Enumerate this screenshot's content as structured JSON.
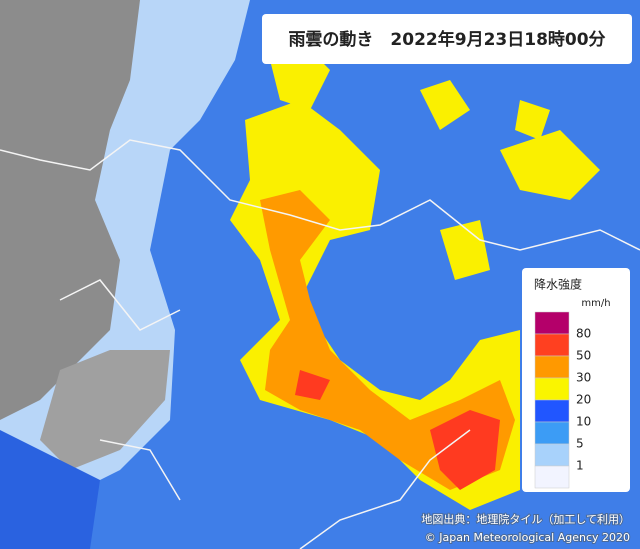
{
  "header": {
    "title": "雨雲の動き　2022年9月23日18時00分"
  },
  "legend": {
    "title": "降水強度",
    "unit": "mm/h",
    "colors": [
      "#b4006a",
      "#ff4020",
      "#ff9900",
      "#faf500",
      "#2156ff",
      "#3c9cf5",
      "#a8d2fb",
      "#f2f4ff"
    ],
    "labels": [
      "80",
      "50",
      "30",
      "20",
      "10",
      "5",
      "1"
    ]
  },
  "footer": {
    "source": "地図出典：地理院タイル（加工して利用）",
    "copyright": "© Japan Meteorological Agency 2020"
  }
}
